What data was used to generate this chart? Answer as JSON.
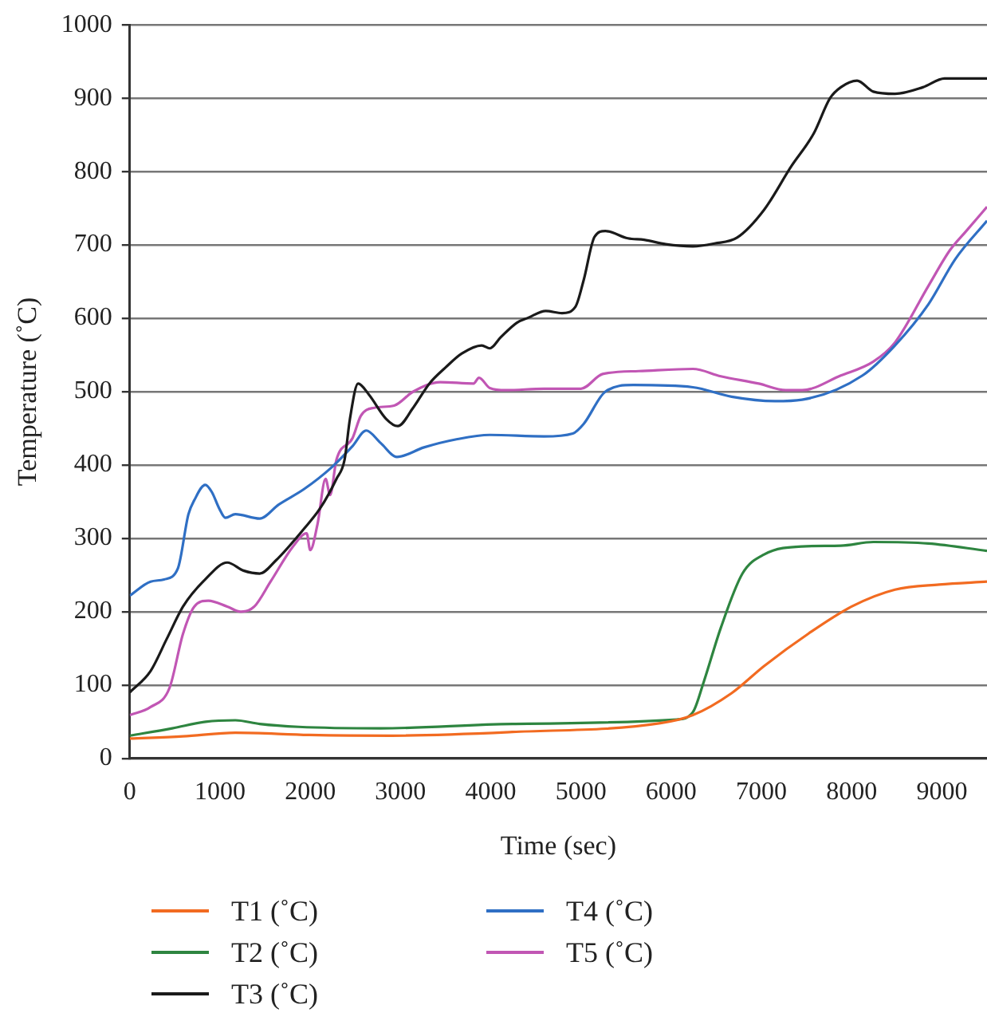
{
  "chart_data": {
    "type": "line",
    "xlabel": "Time (sec)",
    "ylabel": "Temperature (˚C)",
    "xlim": [
      0,
      9500
    ],
    "xticks": [
      0,
      1000,
      2000,
      3000,
      4000,
      5000,
      6000,
      7000,
      8000,
      9000
    ],
    "ylim": [
      0,
      1000
    ],
    "yticks": [
      0,
      100,
      200,
      300,
      400,
      500,
      600,
      700,
      800,
      900,
      1000
    ],
    "grid": "y",
    "legend": "bottom",
    "marker": "none",
    "line_style": "solid",
    "series": [
      {
        "name": "T1 (˚C)",
        "color": "#f26b21",
        "x": [
          0,
          590,
          1170,
          1990,
          2900,
          4240,
          5880,
          6240,
          6670,
          7030,
          7520,
          8000,
          8480,
          8970,
          9500
        ],
        "values": [
          27,
          30,
          35,
          32,
          31,
          36,
          48,
          59,
          89,
          126,
          170,
          207,
          230,
          237,
          241
        ]
      },
      {
        "name": "T2 (˚C)",
        "color": "#2e8540",
        "x": [
          0,
          470,
          840,
          1170,
          1440,
          1870,
          2780,
          4240,
          6060,
          6240,
          6360,
          6550,
          6790,
          7030,
          7450,
          7880,
          8240,
          8850,
          9500
        ],
        "values": [
          31,
          41,
          50,
          52,
          47,
          43,
          41,
          47,
          53,
          63,
          104,
          178,
          252,
          278,
          289,
          290,
          295,
          293,
          283
        ]
      },
      {
        "name": "T3 (˚C)",
        "color": "#1a1a1a",
        "x": [
          0,
          230,
          410,
          590,
          836,
          1080,
          1260,
          1440,
          1620,
          1930,
          2110,
          2290,
          2380,
          2440,
          2530,
          2650,
          2840,
          2970,
          3140,
          3320,
          3500,
          3680,
          3900,
          3990,
          4110,
          4290,
          4420,
          4610,
          4790,
          4940,
          5030,
          5150,
          5270,
          5520,
          5700,
          5940,
          6240,
          6480,
          6730,
          7030,
          7330,
          7580,
          7760,
          7880,
          8060,
          8240,
          8480,
          8790,
          9030,
          9270,
          9500
        ],
        "values": [
          90,
          119,
          163,
          207,
          244,
          267,
          256,
          252,
          270,
          313,
          341,
          381,
          407,
          463,
          511,
          496,
          463,
          453,
          478,
          511,
          533,
          552,
          563,
          559,
          574,
          594,
          601,
          610,
          607,
          616,
          652,
          711,
          719,
          709,
          707,
          701,
          698,
          702,
          710,
          748,
          807,
          852,
          900,
          915,
          924,
          909,
          906,
          915,
          927,
          927,
          927
        ]
      },
      {
        "name": "T4 (˚C)",
        "color": "#2f6fc4",
        "x": [
          0,
          230,
          380,
          533,
          650,
          715,
          836,
          910,
          990,
          1060,
          1170,
          1440,
          1650,
          1930,
          2230,
          2470,
          2620,
          2780,
          2960,
          3260,
          3620,
          3990,
          4590,
          4910,
          5030,
          5270,
          5580,
          6240,
          6670,
          7150,
          7450,
          8120,
          8480,
          8850,
          9150,
          9500
        ],
        "values": [
          222,
          241,
          244,
          259,
          333,
          352,
          373,
          363,
          341,
          328,
          333,
          327,
          346,
          367,
          396,
          426,
          447,
          430,
          411,
          424,
          435,
          441,
          439,
          443,
          456,
          500,
          509,
          506,
          493,
          487,
          489,
          522,
          563,
          619,
          681,
          733
        ]
      },
      {
        "name": "T5 (˚C)",
        "color": "#c156b4",
        "x": [
          0,
          230,
          440,
          590,
          715,
          870,
          1080,
          1230,
          1380,
          1560,
          1810,
          1960,
          2000,
          2080,
          2170,
          2220,
          2290,
          2470,
          2560,
          2710,
          2930,
          3140,
          3440,
          3810,
          3870,
          3990,
          4170,
          4590,
          5000,
          5240,
          5640,
          6240,
          6550,
          6970,
          7270,
          7450,
          7880,
          8240,
          8480,
          8850,
          9090,
          9270,
          9500
        ],
        "values": [
          59,
          70,
          96,
          170,
          207,
          215,
          207,
          200,
          207,
          241,
          289,
          307,
          284,
          319,
          381,
          359,
          407,
          437,
          467,
          478,
          481,
          500,
          513,
          511,
          519,
          505,
          502,
          504,
          504,
          524,
          528,
          531,
          521,
          511,
          502,
          502,
          522,
          541,
          567,
          644,
          693,
          719,
          752
        ]
      }
    ]
  }
}
